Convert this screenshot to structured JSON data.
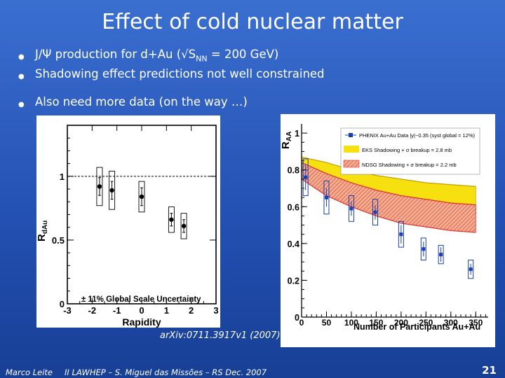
{
  "slide": {
    "title": "Effect of cold nuclear matter",
    "bullets": [
      "J/Ψ production for d+Au (√S",
      "Shadowing effect predictions not well constrained",
      "Also need more data (on the way …)"
    ],
    "bullet1_sub": "NN",
    "bullet1_tail": " = 200 GeV)",
    "citation": "arXiv:0711.3917v1 (2007)",
    "footer": {
      "author": "Marco Leite",
      "conference": "II LAWHEP – S. Miguel das Missões – RS   Dec. 2007",
      "page": "21"
    }
  },
  "left_plot": {
    "ylabel": "R",
    "ylabel_sub": "dAu",
    "xlabel": "Rapidity",
    "annotation": "± 11% Global Scale Uncertainty",
    "x_ticks": [
      "-3",
      "-2",
      "-1",
      "0",
      "1",
      "2",
      "3"
    ],
    "y_ticks": [
      "0",
      "0.5",
      "1"
    ]
  },
  "right_plot": {
    "ylabel": "R",
    "ylabel_sub": "AA",
    "xlabel": "Number of Participants Au+Au",
    "x_ticks": [
      "0",
      "50",
      "100",
      "150",
      "200",
      "250",
      "300",
      "350"
    ],
    "y_ticks": [
      "0",
      "0.2",
      "0.4",
      "0.6",
      "0.8",
      "1"
    ],
    "legend": [
      "PHENIX Au+Au Data |y|~0.35 (syst global = 12%)",
      "EKS Shadowing + σ breakup = 2.8 mb",
      "NDSG Shadowing + σ breakup = 2.2 mb"
    ]
  },
  "chart_data": [
    {
      "type": "scatter",
      "title": "",
      "xlabel": "Rapidity",
      "ylabel": "RdAu",
      "xlim": [
        -3,
        3
      ],
      "ylim": [
        0,
        1.4
      ],
      "annotation": "± 11% Global Scale Uncertainty",
      "series": [
        {
          "x": [
            -1.7,
            -1.2,
            0,
            1.2,
            1.7
          ],
          "y": [
            0.92,
            0.89,
            0.84,
            0.66,
            0.61
          ],
          "err": [
            0.07,
            0.07,
            0.07,
            0.05,
            0.05
          ],
          "syst": [
            0.15,
            0.15,
            0.12,
            0.1,
            0.1
          ]
        }
      ],
      "reference_line": 1.0
    },
    {
      "type": "scatter",
      "title": "",
      "xlabel": "Number of Participants Au+Au",
      "ylabel": "RAA",
      "xlim": [
        0,
        375
      ],
      "ylim": [
        0,
        1.05
      ],
      "series": [
        {
          "name": "PHENIX Au+Au Data |y|~0.35",
          "x": [
            8,
            50,
            100,
            148,
            200,
            245,
            280,
            340
          ],
          "y": [
            0.76,
            0.65,
            0.59,
            0.57,
            0.45,
            0.37,
            0.34,
            0.26
          ],
          "err": [
            0.07,
            0.05,
            0.04,
            0.04,
            0.05,
            0.04,
            0.04,
            0.03
          ],
          "syst": [
            0.1,
            0.09,
            0.07,
            0.07,
            0.07,
            0.06,
            0.05,
            0.05
          ]
        },
        {
          "name": "EKS Shadowing",
          "x": [
            0,
            50,
            100,
            150,
            200,
            250,
            300,
            350
          ],
          "y_low": [
            0.75,
            0.72,
            0.68,
            0.64,
            0.61,
            0.59,
            0.57,
            0.56
          ],
          "y_high": [
            0.87,
            0.84,
            0.8,
            0.77,
            0.75,
            0.73,
            0.72,
            0.71
          ]
        },
        {
          "name": "NDSG Shadowing",
          "x": [
            0,
            50,
            100,
            150,
            200,
            250,
            300,
            350
          ],
          "y_low": [
            0.75,
            0.66,
            0.6,
            0.55,
            0.51,
            0.49,
            0.47,
            0.46
          ],
          "y_high": [
            0.84,
            0.78,
            0.73,
            0.69,
            0.66,
            0.64,
            0.62,
            0.61
          ]
        }
      ]
    }
  ]
}
